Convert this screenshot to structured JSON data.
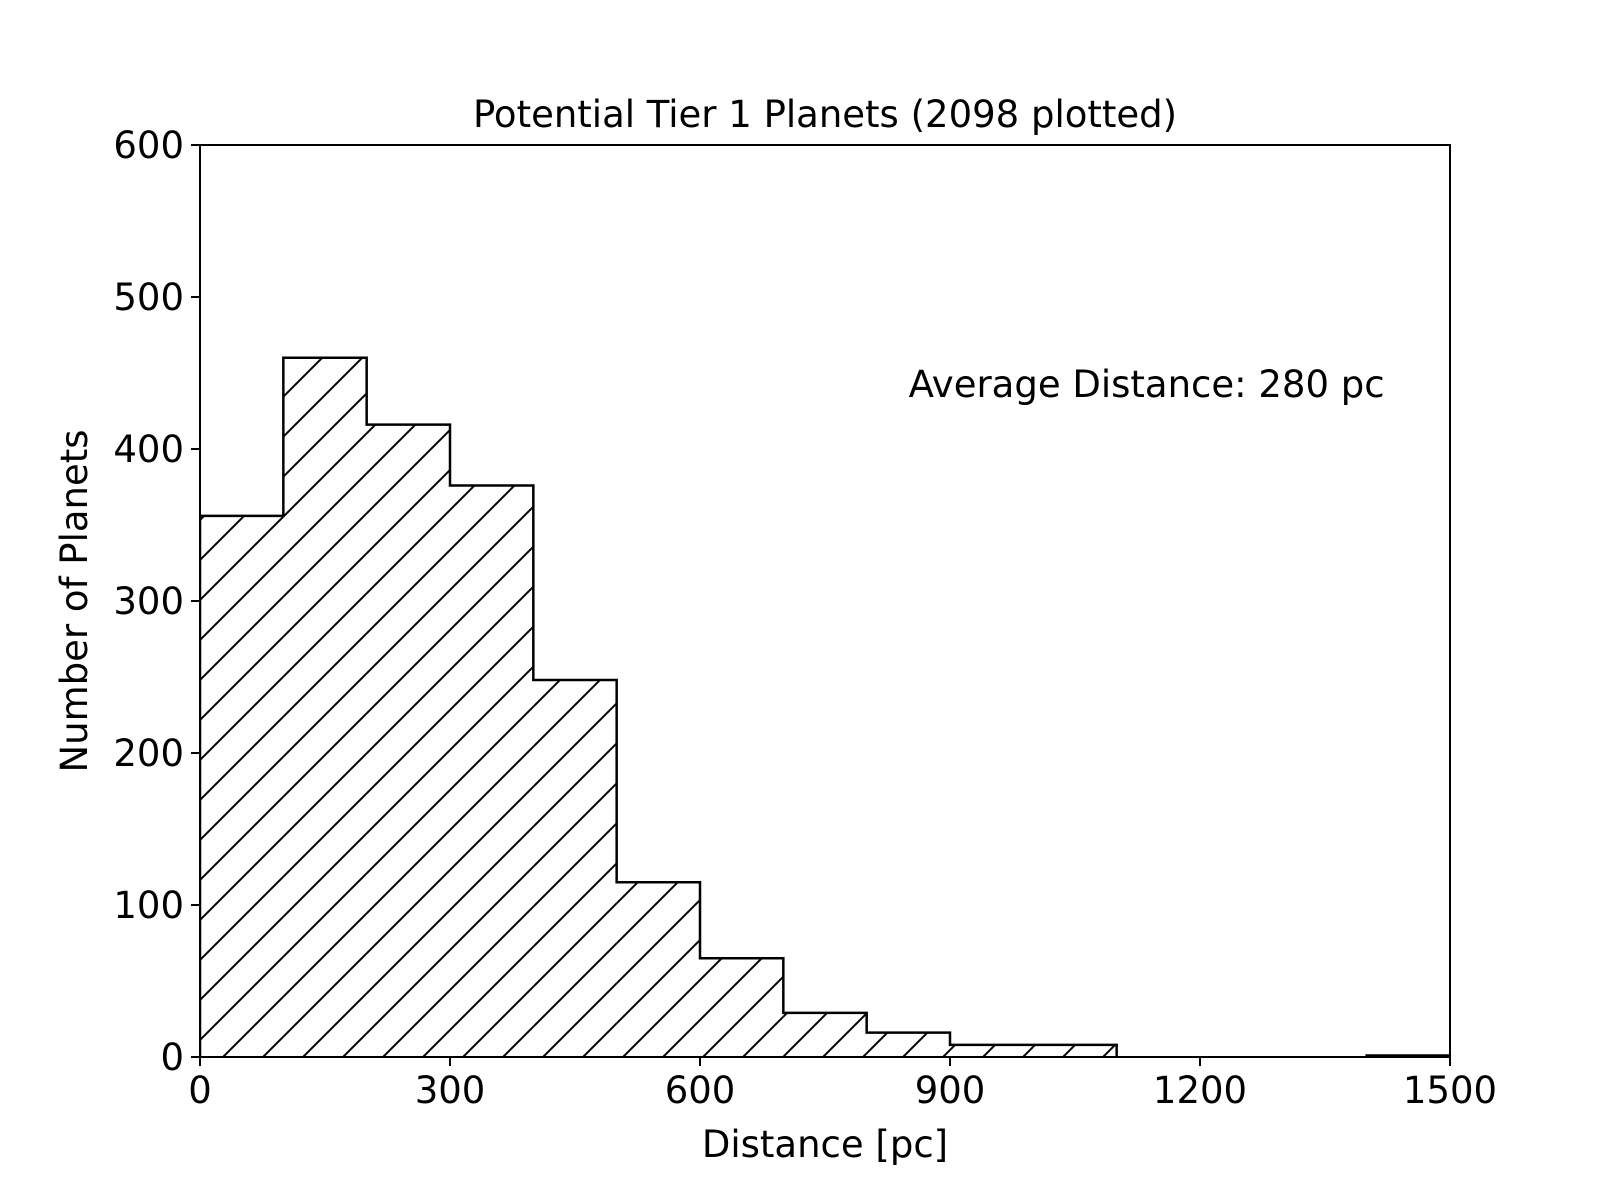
{
  "chart_data": {
    "type": "histogram",
    "title": "Potential Tier 1 Planets (2098 plotted)",
    "xlabel": "Distance [pc]",
    "ylabel": "Number of Planets",
    "xlim": [
      0,
      1500
    ],
    "ylim": [
      0,
      600
    ],
    "xticks": [
      0,
      300,
      600,
      900,
      1200,
      1500
    ],
    "xtick_labels": [
      "0",
      "300",
      "600",
      "900",
      "1200",
      "1500"
    ],
    "yticks": [
      0,
      100,
      200,
      300,
      400,
      500,
      600
    ],
    "ytick_labels": [
      "0",
      "100",
      "200",
      "300",
      "400",
      "500",
      "600"
    ],
    "bin_edges": [
      0,
      100,
      200,
      300,
      400,
      500,
      600,
      700,
      800,
      900,
      1000,
      1100,
      1200,
      1300,
      1400,
      1500
    ],
    "counts": [
      356,
      460,
      416,
      376,
      248,
      115,
      65,
      29,
      16,
      8,
      8,
      0,
      0,
      0,
      1
    ],
    "fill": "hatched",
    "hatch": "diagonal",
    "edge_color": "#000000",
    "grid": false,
    "annotation": {
      "text": "Average Distance: 280 pc",
      "x": 800,
      "y": 460
    }
  }
}
